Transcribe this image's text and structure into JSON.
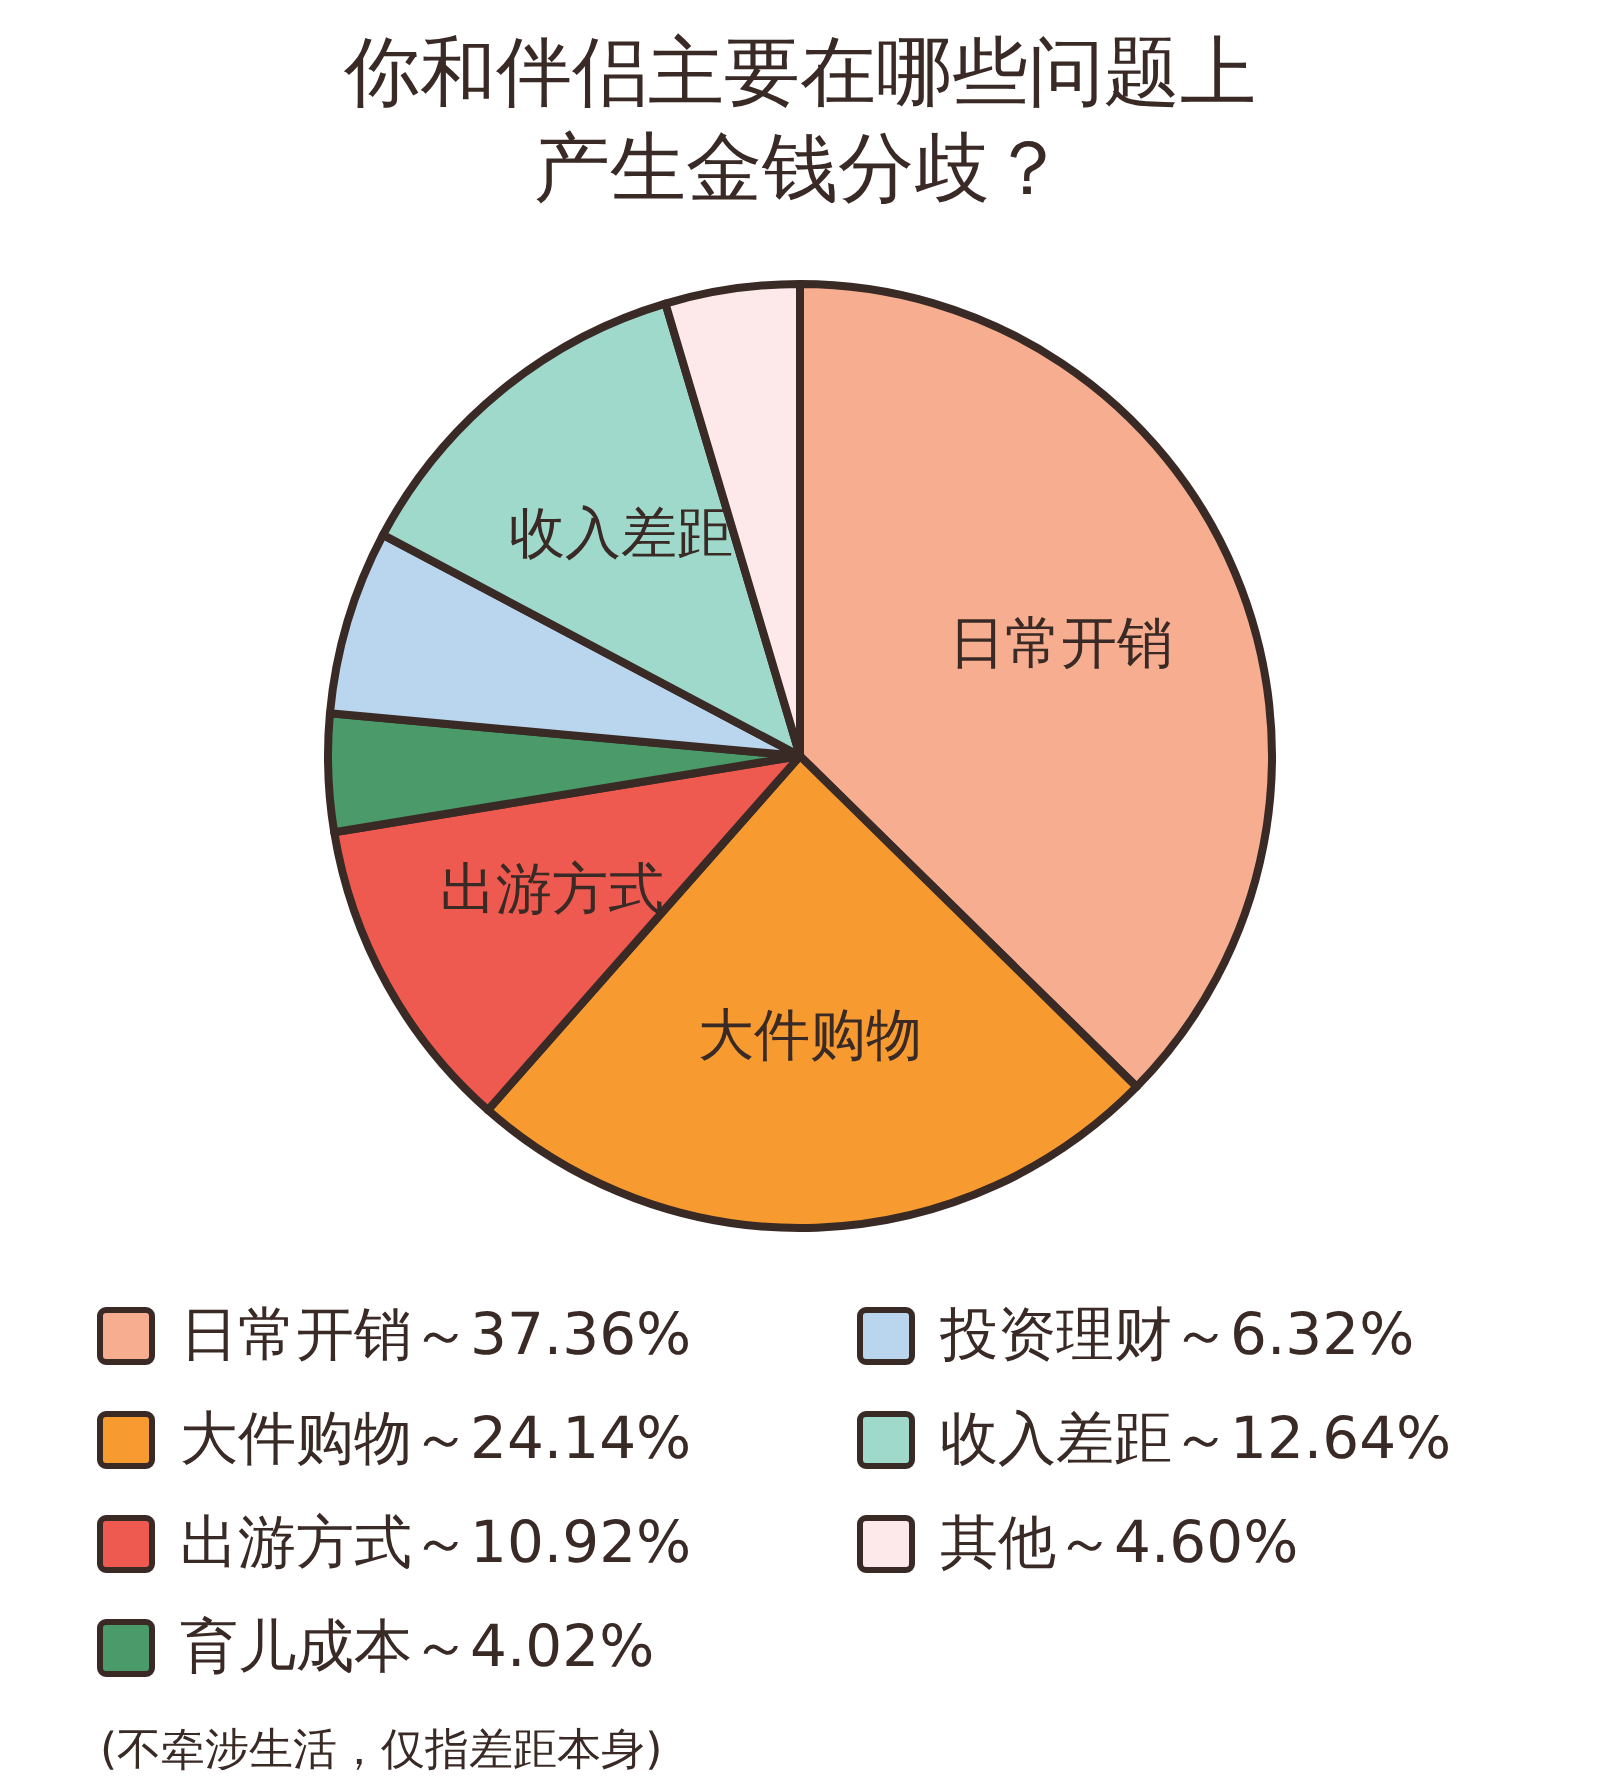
{
  "chart_data": {
    "type": "pie",
    "title": "你和伴侣主要在哪些问题上产生金钱分歧？",
    "categories": [
      "日常开销",
      "大件购物",
      "出游方式",
      "育儿成本",
      "投资理财",
      "收入差距",
      "其他"
    ],
    "values": [
      37.36,
      24.14,
      10.92,
      4.02,
      6.32,
      12.64,
      4.6
    ],
    "colors": [
      "#f7ad90",
      "#f79a30",
      "#ef5a50",
      "#4a9a6a",
      "#b9d6ee",
      "#9fd9cc",
      "#fde9e9"
    ],
    "value_labels": [
      "～37.36%",
      "～24.14%",
      "～10.92%",
      "～4.02%",
      "～6.32%",
      "～12.64%",
      "～4.60%"
    ],
    "annotations": [
      {
        "text": "日常开销",
        "x": "日常开销"
      },
      {
        "text": "大件购物",
        "x": "大件购物"
      },
      {
        "text": "出游方式",
        "x": "出游方式"
      },
      {
        "text": "收入差距",
        "x": "收入差距"
      },
      "(不牵涉生活，仅指差距本身)"
    ],
    "legend": "bottom"
  }
}
